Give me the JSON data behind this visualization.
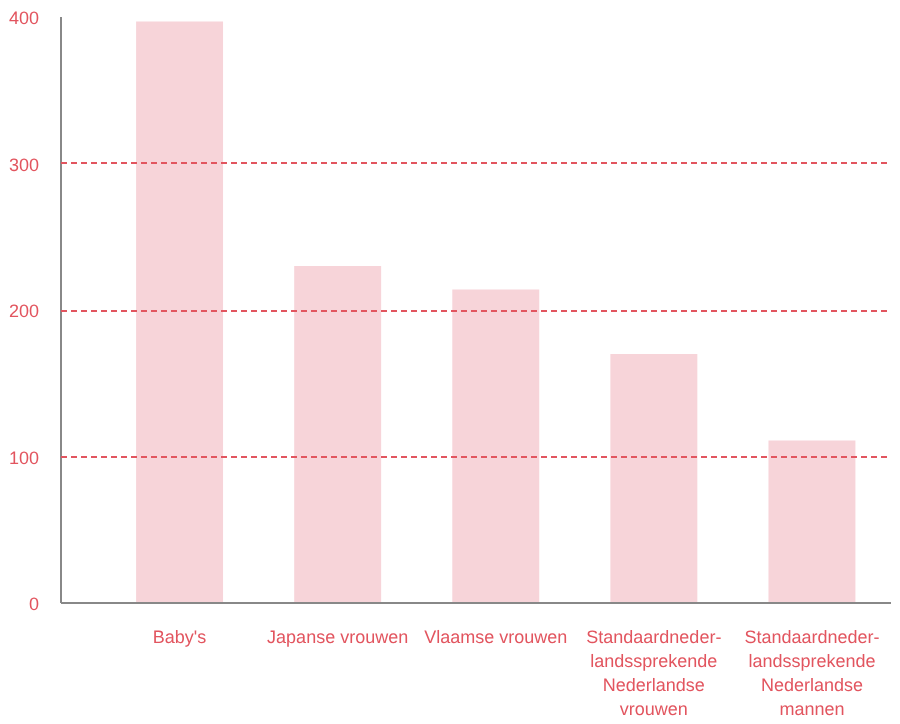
{
  "chart_data": {
    "type": "bar",
    "categories": [
      "Baby's",
      "Japanse vrouwen",
      "Vlaamse vrouwen",
      "Standaardneder-\nlandssprekende\nNederlandse\nvrouwen",
      "Standaardneder-\nlandssprekende\nNederlandse\nmannen"
    ],
    "values": [
      397,
      230,
      214,
      170,
      111
    ],
    "color": "#f7d4d9",
    "ylim": [
      0,
      400
    ],
    "yticks": [
      0,
      100,
      200,
      300,
      400
    ],
    "grid": "y"
  }
}
